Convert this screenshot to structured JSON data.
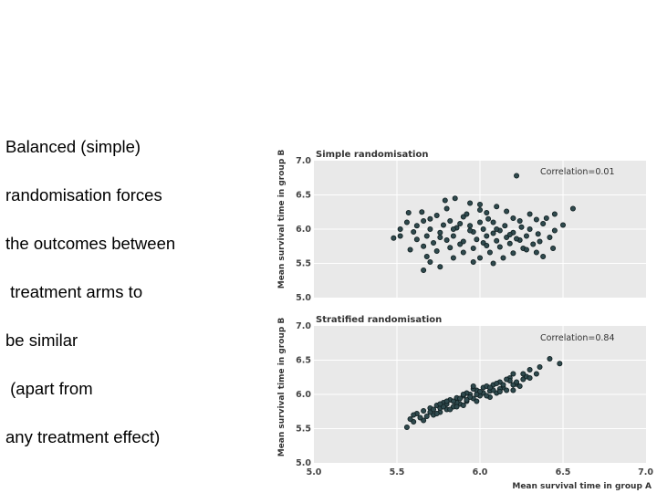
{
  "text_lines": [
    "Balanced (simple)",
    "randomisation forces",
    "the outcomes between",
    " treatment arms to",
    "be similar",
    " (apart from",
    "any treatment effect)"
  ],
  "colors": {
    "panel_bg": "#e9e9e9",
    "grid": "#ffffff",
    "point": "#2f4a4e"
  },
  "chart_data": [
    {
      "type": "scatter",
      "title": "Simple randomisation",
      "annotation": "Correlation=0.01",
      "xlabel": "",
      "ylabel": "Mean survival time in group B",
      "xlim": [
        5.0,
        7.0
      ],
      "ylim": [
        5.0,
        7.0
      ],
      "yticks": [
        "5.0",
        "5.5",
        "6.0",
        "6.5",
        "7.0"
      ],
      "grid": true,
      "points": [
        [
          6.22,
          6.78
        ],
        [
          5.85,
          6.45
        ],
        [
          5.79,
          6.42
        ],
        [
          5.94,
          6.38
        ],
        [
          6.1,
          6.33
        ],
        [
          6.56,
          6.3
        ],
        [
          5.57,
          6.24
        ],
        [
          6.45,
          6.22
        ],
        [
          5.65,
          6.25
        ],
        [
          6.0,
          6.28
        ],
        [
          5.74,
          6.2
        ],
        [
          6.3,
          6.22
        ],
        [
          6.4,
          6.16
        ],
        [
          5.9,
          6.18
        ],
        [
          5.7,
          6.15
        ],
        [
          5.82,
          6.12
        ],
        [
          6.05,
          6.15
        ],
        [
          6.2,
          6.16
        ],
        [
          5.56,
          6.1
        ],
        [
          6.08,
          6.1
        ],
        [
          6.38,
          6.08
        ],
        [
          6.5,
          6.06
        ],
        [
          5.62,
          6.05
        ],
        [
          5.78,
          6.06
        ],
        [
          5.94,
          6.05
        ],
        [
          6.15,
          6.05
        ],
        [
          6.25,
          6.03
        ],
        [
          5.52,
          6.0
        ],
        [
          5.7,
          6.0
        ],
        [
          5.86,
          6.02
        ],
        [
          6.02,
          6.0
        ],
        [
          6.12,
          5.98
        ],
        [
          6.3,
          6.0
        ],
        [
          6.45,
          5.98
        ],
        [
          5.6,
          5.96
        ],
        [
          5.76,
          5.95
        ],
        [
          5.96,
          5.96
        ],
        [
          6.2,
          5.95
        ],
        [
          6.35,
          5.93
        ],
        [
          5.52,
          5.9
        ],
        [
          5.68,
          5.9
        ],
        [
          5.84,
          5.9
        ],
        [
          6.04,
          5.9
        ],
        [
          6.16,
          5.88
        ],
        [
          6.28,
          5.9
        ],
        [
          6.42,
          5.88
        ],
        [
          5.48,
          5.87
        ],
        [
          5.62,
          5.85
        ],
        [
          5.8,
          5.84
        ],
        [
          5.98,
          5.85
        ],
        [
          6.1,
          5.83
        ],
        [
          6.24,
          5.84
        ],
        [
          6.36,
          5.82
        ],
        [
          5.72,
          5.8
        ],
        [
          5.88,
          5.78
        ],
        [
          6.02,
          5.8
        ],
        [
          6.18,
          5.79
        ],
        [
          6.32,
          5.78
        ],
        [
          5.66,
          5.75
        ],
        [
          5.82,
          5.73
        ],
        [
          5.96,
          5.72
        ],
        [
          6.12,
          5.74
        ],
        [
          6.26,
          5.72
        ],
        [
          6.44,
          5.72
        ],
        [
          5.74,
          5.68
        ],
        [
          5.9,
          5.66
        ],
        [
          6.06,
          5.66
        ],
        [
          6.2,
          5.65
        ],
        [
          6.34,
          5.66
        ],
        [
          5.68,
          5.6
        ],
        [
          5.84,
          5.58
        ],
        [
          6.0,
          5.58
        ],
        [
          6.14,
          5.58
        ],
        [
          5.7,
          5.52
        ],
        [
          5.96,
          5.52
        ],
        [
          6.08,
          5.5
        ],
        [
          5.66,
          5.4
        ],
        [
          5.76,
          5.45
        ],
        [
          5.92,
          6.22
        ],
        [
          6.04,
          6.24
        ],
        [
          6.16,
          6.26
        ],
        [
          5.8,
          6.3
        ],
        [
          6.24,
          6.12
        ],
        [
          5.88,
          6.08
        ],
        [
          6.0,
          6.1
        ],
        [
          5.66,
          6.12
        ],
        [
          6.34,
          6.14
        ],
        [
          5.94,
          5.98
        ],
        [
          6.08,
          5.94
        ],
        [
          5.76,
          5.88
        ],
        [
          6.22,
          5.86
        ],
        [
          5.9,
          5.82
        ],
        [
          6.04,
          5.76
        ],
        [
          6.28,
          5.7
        ],
        [
          5.58,
          5.7
        ],
        [
          6.38,
          5.6
        ],
        [
          6.0,
          6.36
        ],
        [
          5.84,
          6.0
        ],
        [
          6.1,
          6.0
        ],
        [
          6.18,
          5.92
        ]
      ]
    },
    {
      "type": "scatter",
      "title": "Stratified randomisation",
      "annotation": "Correlation=0.84",
      "xlabel": "Mean survival time in group A",
      "ylabel": "Mean survival time in group B",
      "xlim": [
        5.0,
        7.0
      ],
      "ylim": [
        5.0,
        7.0
      ],
      "xticks": [
        "5.0",
        "5.5",
        "6.0",
        "6.5",
        "7.0"
      ],
      "yticks": [
        "5.0",
        "5.5",
        "6.0",
        "6.5",
        "7.0"
      ],
      "grid": true,
      "points": [
        [
          6.42,
          6.52
        ],
        [
          6.48,
          6.45
        ],
        [
          6.36,
          6.4
        ],
        [
          6.3,
          6.36
        ],
        [
          6.2,
          6.3
        ],
        [
          6.26,
          6.22
        ],
        [
          6.18,
          6.24
        ],
        [
          6.12,
          6.18
        ],
        [
          6.22,
          6.15
        ],
        [
          6.08,
          6.14
        ],
        [
          6.14,
          6.1
        ],
        [
          6.02,
          6.1
        ],
        [
          6.06,
          6.05
        ],
        [
          5.98,
          6.06
        ],
        [
          6.1,
          6.02
        ],
        [
          5.94,
          6.0
        ],
        [
          6.0,
          5.98
        ],
        [
          5.9,
          5.98
        ],
        [
          5.96,
          5.94
        ],
        [
          5.86,
          5.95
        ],
        [
          5.92,
          5.9
        ],
        [
          5.82,
          5.92
        ],
        [
          5.88,
          5.86
        ],
        [
          5.78,
          5.88
        ],
        [
          5.84,
          5.82
        ],
        [
          5.74,
          5.84
        ],
        [
          5.8,
          5.78
        ],
        [
          5.7,
          5.8
        ],
        [
          5.76,
          5.74
        ],
        [
          5.66,
          5.76
        ],
        [
          5.72,
          5.7
        ],
        [
          5.62,
          5.72
        ],
        [
          5.6,
          5.6
        ],
        [
          5.56,
          5.52
        ],
        [
          5.66,
          5.62
        ],
        [
          6.16,
          6.06
        ],
        [
          6.04,
          6.12
        ],
        [
          6.24,
          6.12
        ],
        [
          5.98,
          5.9
        ],
        [
          6.06,
          5.96
        ],
        [
          5.92,
          6.02
        ],
        [
          5.86,
          5.88
        ],
        [
          6.12,
          6.08
        ],
        [
          6.2,
          6.14
        ],
        [
          5.8,
          5.86
        ],
        [
          5.76,
          5.8
        ],
        [
          5.7,
          5.74
        ],
        [
          6.28,
          6.26
        ],
        [
          6.02,
          6.02
        ],
        [
          5.96,
          6.08
        ],
        [
          6.18,
          6.2
        ],
        [
          6.1,
          6.16
        ],
        [
          5.88,
          5.94
        ],
        [
          5.84,
          5.9
        ],
        [
          5.78,
          5.82
        ],
        [
          6.14,
          6.14
        ],
        [
          6.08,
          6.06
        ],
        [
          5.94,
          5.96
        ],
        [
          6.0,
          6.04
        ],
        [
          5.9,
          5.84
        ],
        [
          5.82,
          5.78
        ],
        [
          5.68,
          5.68
        ],
        [
          5.74,
          5.72
        ],
        [
          6.22,
          6.18
        ],
        [
          6.26,
          6.3
        ],
        [
          6.3,
          6.24
        ],
        [
          6.06,
          6.1
        ],
        [
          5.98,
          6.0
        ],
        [
          5.92,
          5.92
        ],
        [
          6.12,
          6.04
        ],
        [
          6.04,
          5.98
        ],
        [
          5.86,
          5.82
        ],
        [
          5.64,
          5.66
        ],
        [
          5.72,
          5.78
        ],
        [
          6.16,
          6.22
        ],
        [
          6.2,
          6.06
        ],
        [
          5.9,
          6.0
        ],
        [
          5.8,
          5.9
        ],
        [
          6.34,
          6.3
        ],
        [
          5.96,
          6.12
        ],
        [
          5.76,
          5.86
        ],
        [
          5.6,
          5.7
        ],
        [
          5.58,
          5.64
        ]
      ]
    }
  ]
}
